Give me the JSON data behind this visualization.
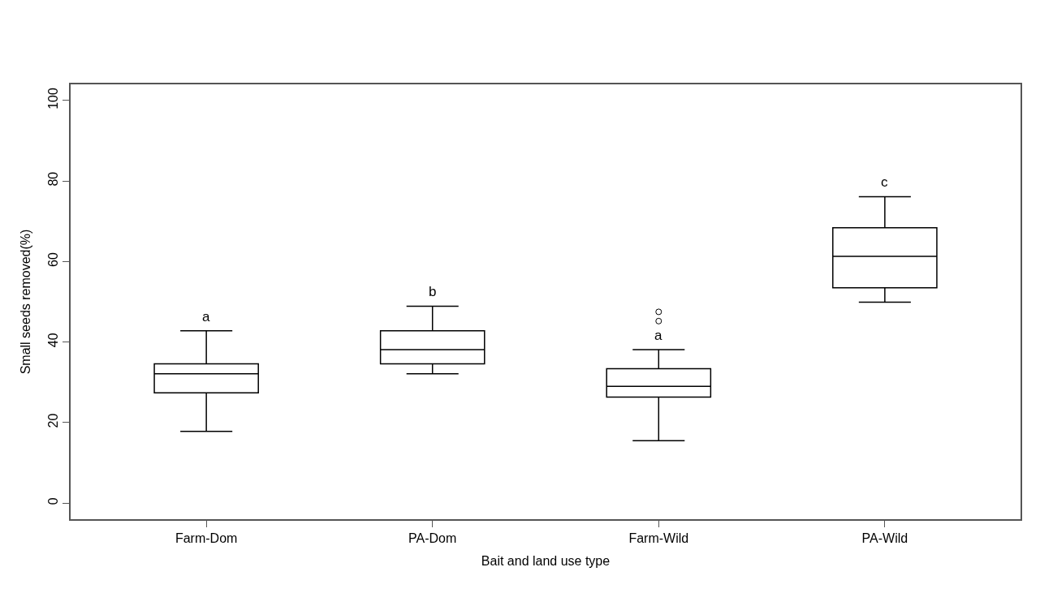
{
  "chart_data": {
    "type": "box",
    "xlabel": "Bait and land use type",
    "ylabel": "Small seeds removed(%)",
    "categories": [
      "Farm-Dom",
      "PA-Dom",
      "Farm-Wild",
      "PA-Wild"
    ],
    "boxes": [
      {
        "low": 17.8,
        "q1": 27.4,
        "median": 32.1,
        "q3": 34.6,
        "high": 42.8
      },
      {
        "low": 32.1,
        "q1": 34.6,
        "median": 38.1,
        "q3": 42.8,
        "high": 48.9
      },
      {
        "low": 15.5,
        "q1": 26.3,
        "median": 29.0,
        "q3": 33.4,
        "high": 38.1,
        "outliers": [
          45.2,
          47.5
        ]
      },
      {
        "low": 49.9,
        "q1": 53.5,
        "median": 61.3,
        "q3": 68.4,
        "high": 76.1
      }
    ],
    "ylim": [
      -4,
      104
    ],
    "yticks": [
      0,
      20,
      40,
      60,
      80,
      100
    ],
    "annotations": [
      "a",
      "b",
      "a",
      "c"
    ]
  }
}
